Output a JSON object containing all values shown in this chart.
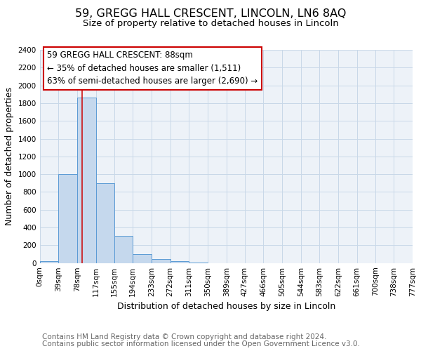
{
  "title": "59, GREGG HALL CRESCENT, LINCOLN, LN6 8AQ",
  "subtitle": "Size of property relative to detached houses in Lincoln",
  "xlabel": "Distribution of detached houses by size in Lincoln",
  "ylabel": "Number of detached properties",
  "footer_line1": "Contains HM Land Registry data © Crown copyright and database right 2024.",
  "footer_line2": "Contains public sector information licensed under the Open Government Licence v3.0.",
  "bin_edges": [
    0,
    39,
    78,
    117,
    155,
    194,
    233,
    272,
    311,
    350,
    389,
    427,
    466,
    505,
    544,
    583,
    622,
    661,
    700,
    738,
    777
  ],
  "bin_labels": [
    "0sqm",
    "39sqm",
    "78sqm",
    "117sqm",
    "155sqm",
    "194sqm",
    "233sqm",
    "272sqm",
    "311sqm",
    "350sqm",
    "389sqm",
    "427sqm",
    "466sqm",
    "505sqm",
    "544sqm",
    "583sqm",
    "622sqm",
    "661sqm",
    "700sqm",
    "738sqm",
    "777sqm"
  ],
  "bar_heights": [
    20,
    1005,
    1865,
    895,
    305,
    100,
    45,
    20,
    5,
    0,
    0,
    0,
    0,
    0,
    0,
    0,
    0,
    0,
    0,
    0
  ],
  "bar_color": "#c5d8ed",
  "bar_edge_color": "#5b9bd5",
  "grid_color": "#c8d8e8",
  "background_color": "#edf2f8",
  "vline_x": 88,
  "vline_color": "#cc0000",
  "annotation_title": "59 GREGG HALL CRESCENT: 88sqm",
  "annotation_line2": "← 35% of detached houses are smaller (1,511)",
  "annotation_line3": "63% of semi-detached houses are larger (2,690) →",
  "ylim": [
    0,
    2400
  ],
  "yticks": [
    0,
    200,
    400,
    600,
    800,
    1000,
    1200,
    1400,
    1600,
    1800,
    2000,
    2200,
    2400
  ],
  "title_fontsize": 11.5,
  "subtitle_fontsize": 9.5,
  "axis_label_fontsize": 9,
  "tick_fontsize": 7.5,
  "annotation_fontsize": 8.5,
  "footer_fontsize": 7.5
}
